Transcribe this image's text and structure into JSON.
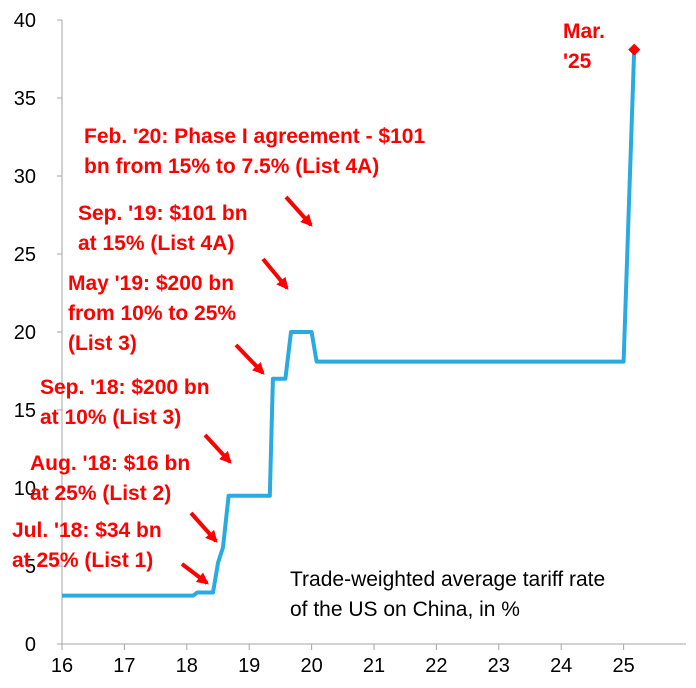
{
  "chart_data": {
    "type": "line",
    "title": "",
    "xlabel": "",
    "ylabel": "",
    "xlim": [
      16,
      26
    ],
    "ylim": [
      0,
      40
    ],
    "x_ticks": [
      16,
      17,
      18,
      19,
      20,
      21,
      22,
      23,
      24,
      25
    ],
    "y_ticks": [
      0,
      5,
      10,
      15,
      20,
      25,
      30,
      35,
      40
    ],
    "grid": false,
    "line_color": "#29abe2",
    "annotation_color": "#ff0000",
    "series": [
      {
        "points": [
          [
            16.0,
            3.1
          ],
          [
            18.1,
            3.1
          ],
          [
            18.17,
            3.3
          ],
          [
            18.42,
            3.3
          ],
          [
            18.5,
            5.2
          ],
          [
            18.58,
            6.2
          ],
          [
            18.67,
            9.5
          ],
          [
            19.33,
            9.5
          ],
          [
            19.38,
            17.0
          ],
          [
            19.58,
            17.0
          ],
          [
            19.67,
            20.0
          ],
          [
            20.0,
            20.0
          ],
          [
            20.08,
            18.1
          ],
          [
            25.0,
            18.1
          ],
          [
            25.17,
            38.1
          ]
        ]
      }
    ],
    "caption_lines": [
      "Trade-weighted average tariff rate",
      "of the US on China, in %"
    ],
    "annotations": [
      {
        "lines": [
          "Jul. '18: $34 bn",
          "at 25% (List 1)"
        ]
      },
      {
        "lines": [
          "Aug. '18: $16 bn",
          "at 25% (List 2)"
        ]
      },
      {
        "lines": [
          "Sep. '18: $200 bn",
          "at 10% (List 3)"
        ]
      },
      {
        "lines": [
          "May '19: $200 bn",
          "from 10% to 25%",
          "(List 3)"
        ]
      },
      {
        "lines": [
          "Sep. '19: $101 bn",
          "at 15% (List 4A)"
        ]
      },
      {
        "lines": [
          "Feb. '20: Phase I agreement - $101",
          "bn from 15% to 7.5% (List 4A)"
        ]
      },
      {
        "lines": [
          "Mar.",
          "'25"
        ]
      }
    ]
  }
}
